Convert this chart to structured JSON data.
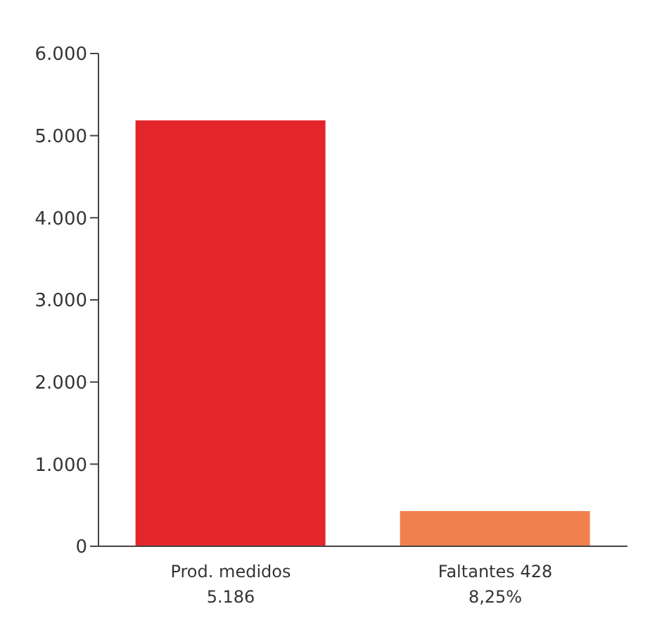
{
  "chart_data": {
    "type": "bar",
    "categories": [
      "Prod. medidos\n5.186",
      "Faltantes 428\n8,25%"
    ],
    "values": [
      5186,
      428
    ],
    "colors": [
      "#e2262c",
      "#f0814f"
    ],
    "ylim": [
      0,
      6000
    ],
    "yticks": [
      0,
      {
        "value": 1000,
        "label": "1.000"
      },
      {
        "value": 2000,
        "label": "2.000"
      },
      {
        "value": 3000,
        "label": "3.000"
      },
      {
        "value": 4000,
        "label": "4.000"
      },
      {
        "value": 5000,
        "label": "5.000"
      },
      {
        "value": 6000,
        "label": "6.000"
      }
    ],
    "grid": false
  }
}
